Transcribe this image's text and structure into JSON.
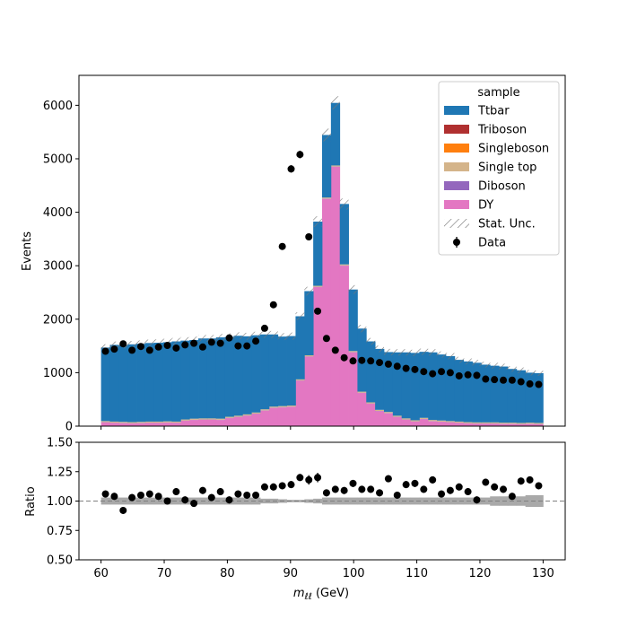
{
  "chart_data": {
    "type": "bar",
    "stacked": true,
    "x_edges_start": 60,
    "x_edges_end": 130,
    "n_bins": 50,
    "xlabel": "m_{ℓℓ} (GeV)",
    "xlabel_main": "m",
    "xlabel_sub": "ℓℓ",
    "xlabel_unit": " (GeV)",
    "ylabel": "Events",
    "ylim": [
      0,
      6560
    ],
    "xlim": [
      56.5,
      133.5
    ],
    "x_ticks": [
      60,
      70,
      80,
      90,
      100,
      110,
      120,
      130
    ],
    "y_ticks": [
      0,
      1000,
      2000,
      3000,
      4000,
      5000,
      6000
    ],
    "legend": {
      "title": "sample",
      "placement": "top-right",
      "entries": [
        "Ttbar",
        "Triboson",
        "Singleboson",
        "Single top",
        "Diboson",
        "DY",
        "Stat. Unc.",
        "Data"
      ]
    },
    "series": [
      {
        "name": "DY",
        "color": "#e377c2",
        "values": [
          70,
          60,
          55,
          50,
          55,
          60,
          60,
          65,
          60,
          100,
          115,
          120,
          120,
          115,
          150,
          170,
          195,
          230,
          290,
          340,
          350,
          360,
          850,
          1300,
          2600,
          4250,
          4850,
          3000,
          1380,
          620,
          420,
          280,
          240,
          170,
          120,
          85,
          130,
          90,
          80,
          70,
          60,
          50,
          45,
          45,
          45,
          40,
          40,
          35,
          40,
          35
        ]
      },
      {
        "name": "Diboson",
        "color": "#9467bd",
        "values": [
          5,
          5,
          5,
          5,
          5,
          5,
          5,
          5,
          5,
          5,
          5,
          5,
          5,
          5,
          5,
          5,
          5,
          5,
          5,
          5,
          5,
          5,
          5,
          5,
          5,
          5,
          5,
          5,
          5,
          5,
          5,
          5,
          5,
          5,
          5,
          5,
          5,
          5,
          5,
          5,
          5,
          5,
          5,
          5,
          5,
          5,
          5,
          5,
          5,
          5
        ]
      },
      {
        "name": "Single top",
        "color": "#d4b48a",
        "values": [
          20,
          20,
          20,
          20,
          20,
          20,
          20,
          20,
          20,
          20,
          20,
          20,
          20,
          20,
          20,
          20,
          20,
          20,
          20,
          20,
          20,
          20,
          20,
          20,
          20,
          20,
          20,
          20,
          20,
          20,
          20,
          20,
          20,
          20,
          20,
          20,
          20,
          20,
          20,
          20,
          20,
          20,
          20,
          20,
          20,
          20,
          20,
          20,
          20,
          20
        ]
      },
      {
        "name": "Singleboson",
        "color": "#ff7f0e",
        "values": [
          0,
          0,
          0,
          0,
          0,
          0,
          0,
          0,
          0,
          0,
          0,
          0,
          0,
          0,
          0,
          0,
          0,
          0,
          0,
          0,
          0,
          0,
          0,
          0,
          0,
          0,
          0,
          0,
          0,
          0,
          0,
          0,
          0,
          0,
          0,
          0,
          0,
          0,
          0,
          0,
          0,
          0,
          0,
          0,
          0,
          0,
          0,
          0,
          0,
          0
        ]
      },
      {
        "name": "Triboson",
        "color": "#b03030",
        "values": [
          0,
          0,
          0,
          0,
          0,
          0,
          0,
          0,
          0,
          0,
          0,
          0,
          0,
          0,
          0,
          0,
          0,
          0,
          0,
          0,
          0,
          0,
          0,
          0,
          0,
          0,
          0,
          0,
          0,
          0,
          0,
          0,
          0,
          0,
          0,
          0,
          0,
          0,
          0,
          0,
          0,
          0,
          0,
          0,
          0,
          0,
          0,
          0,
          0,
          0
        ]
      },
      {
        "name": "Ttbar",
        "color": "#1f77b4",
        "values": [
          1375,
          1435,
          1435,
          1455,
          1460,
          1470,
          1475,
          1480,
          1500,
          1475,
          1470,
          1495,
          1495,
          1520,
          1495,
          1495,
          1460,
          1445,
          1400,
          1350,
          1300,
          1300,
          1180,
          1200,
          1200,
          1170,
          1170,
          1130,
          1150,
          1180,
          1140,
          1140,
          1120,
          1185,
          1235,
          1260,
          1235,
          1265,
          1235,
          1215,
          1155,
          1135,
          1115,
          1080,
          1060,
          1050,
          1005,
          985,
          935,
          930
        ]
      }
    ],
    "data_points": {
      "name": "Data",
      "x": [
        60.7,
        62.1,
        63.5,
        64.9,
        66.3,
        67.7,
        69.1,
        70.5,
        71.9,
        73.3,
        74.7,
        76.1,
        77.5,
        78.9,
        80.3,
        81.7,
        83.1,
        84.5,
        85.9,
        87.3,
        88.7,
        90.1,
        91.5,
        92.9,
        94.3,
        95.7,
        97.1,
        98.5,
        99.9,
        101.3,
        102.7,
        104.1,
        105.5,
        106.9,
        108.3,
        109.7,
        111.1,
        112.5,
        113.9,
        115.3,
        116.7,
        118.1,
        119.5,
        120.9,
        122.3,
        123.7,
        125.1,
        126.5,
        127.9,
        129.3
      ],
      "y": [
        1400,
        1440,
        1540,
        1420,
        1490,
        1420,
        1480,
        1510,
        1460,
        1520,
        1550,
        1480,
        1570,
        1550,
        1650,
        1500,
        1500,
        1590,
        1830,
        2270,
        3360,
        4810,
        5080,
        3540,
        2150,
        1640,
        1420,
        1280,
        1220,
        1230,
        1220,
        1190,
        1160,
        1120,
        1080,
        1060,
        1020,
        980,
        1020,
        1000,
        940,
        960,
        950,
        880,
        870,
        860,
        860,
        830,
        790,
        780
      ],
      "yerr": [
        37,
        38,
        39,
        38,
        39,
        38,
        38,
        39,
        38,
        39,
        39,
        38,
        40,
        39,
        41,
        39,
        39,
        40,
        43,
        48,
        58,
        69,
        71,
        59,
        46,
        40,
        38,
        36,
        35,
        35,
        35,
        34,
        34,
        33,
        33,
        33,
        32,
        31,
        32,
        32,
        31,
        31,
        31,
        30,
        29,
        29,
        29,
        29,
        28,
        28
      ]
    },
    "ratio": {
      "ylabel": "Ratio",
      "ylim": [
        0.5,
        1.5
      ],
      "y_ticks": [
        0.5,
        0.75,
        1.0,
        1.25,
        1.5
      ],
      "y_tick_labels": [
        "0.50",
        "0.75",
        "1.00",
        "1.25",
        "1.50"
      ],
      "reference": 1.0,
      "values": [
        1.06,
        1.04,
        0.92,
        1.03,
        1.05,
        1.06,
        1.04,
        1.0,
        1.08,
        1.01,
        0.98,
        1.09,
        1.03,
        1.08,
        1.01,
        1.06,
        1.05,
        1.05,
        1.12,
        1.12,
        1.13,
        1.14,
        1.2,
        1.18,
        1.2,
        1.07,
        1.1,
        1.09,
        1.15,
        1.1,
        1.1,
        1.07,
        1.19,
        1.05,
        1.14,
        1.15,
        1.1,
        1.18,
        1.06,
        1.09,
        1.12,
        1.08,
        1.01,
        1.16,
        1.12,
        1.1,
        1.04,
        1.17,
        1.18,
        1.13
      ],
      "errors": [
        0.03,
        0.03,
        0.03,
        0.03,
        0.03,
        0.03,
        0.03,
        0.03,
        0.03,
        0.03,
        0.03,
        0.03,
        0.03,
        0.03,
        0.03,
        0.03,
        0.03,
        0.03,
        0.03,
        0.03,
        0.03,
        0.03,
        0.03,
        0.04,
        0.04,
        0.03,
        0.03,
        0.03,
        0.03,
        0.03,
        0.03,
        0.03,
        0.03,
        0.03,
        0.03,
        0.03,
        0.03,
        0.03,
        0.03,
        0.03,
        0.03,
        0.03,
        0.03,
        0.03,
        0.03,
        0.03,
        0.03,
        0.03,
        0.03,
        0.03
      ],
      "band_halfwidth": [
        0.03,
        0.03,
        0.03,
        0.03,
        0.03,
        0.03,
        0.03,
        0.03,
        0.03,
        0.03,
        0.03,
        0.03,
        0.03,
        0.03,
        0.03,
        0.03,
        0.03,
        0.03,
        0.02,
        0.02,
        0.015,
        0.01,
        0.01,
        0.015,
        0.02,
        0.03,
        0.03,
        0.03,
        0.03,
        0.03,
        0.03,
        0.03,
        0.03,
        0.03,
        0.03,
        0.03,
        0.03,
        0.03,
        0.03,
        0.03,
        0.03,
        0.03,
        0.03,
        0.03,
        0.04,
        0.04,
        0.04,
        0.04,
        0.05,
        0.05
      ]
    }
  }
}
